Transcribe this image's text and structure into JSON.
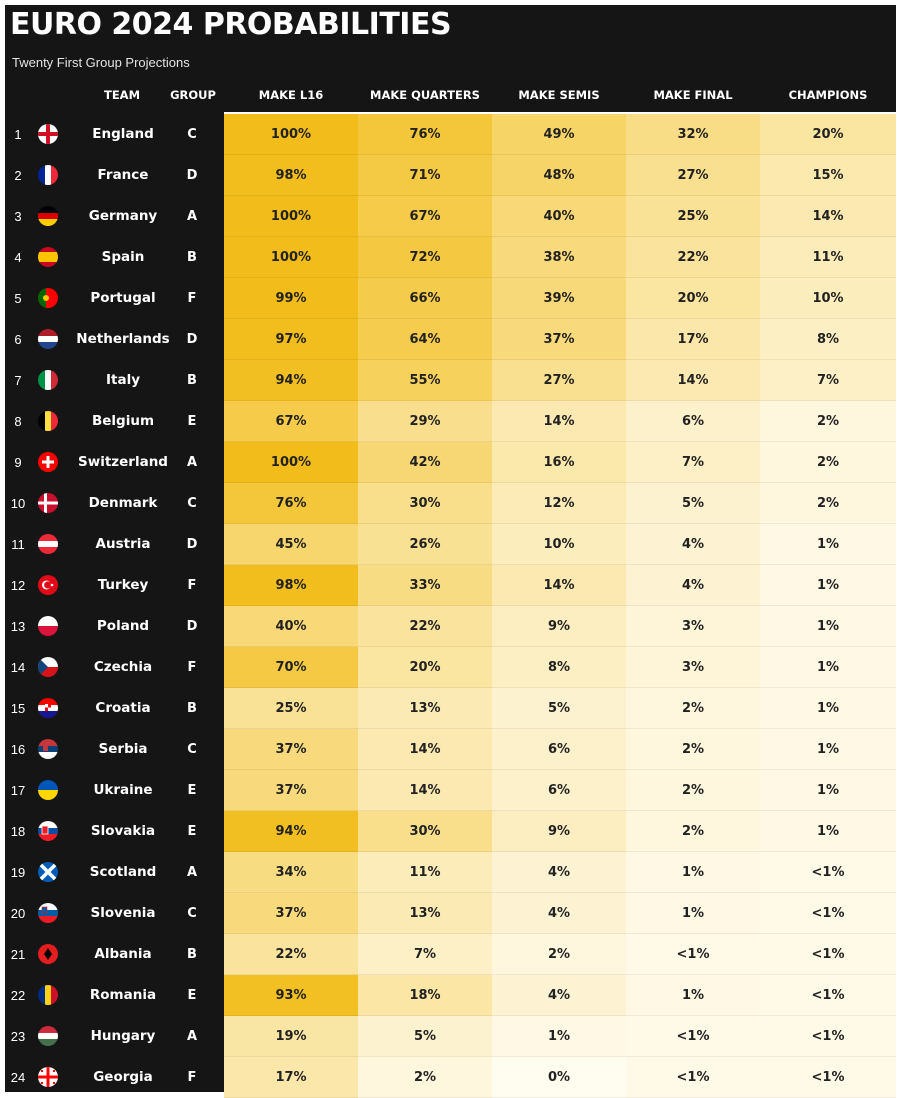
{
  "title": "EURO 2024 PROBABILITIES",
  "subtitle": "Twenty First Group Projections",
  "colors": {
    "header_bg": "#151515",
    "high": "#f2bd1a",
    "low": "#fffcf0",
    "text_dark": "#222222",
    "text_light": "#ffffff"
  },
  "headers": {
    "team": "TEAM",
    "group": "GROUP",
    "make_l16": "MAKE L16",
    "make_quarters": "MAKE QUARTERS",
    "make_semis": "MAKE SEMIS",
    "make_final": "MAKE FINAL",
    "champions": "CHAMPIONS"
  },
  "chart_data": {
    "type": "table",
    "title": "EURO 2024 PROBABILITIES",
    "subtitle": "Twenty First Group Projections",
    "columns": [
      "TEAM",
      "GROUP",
      "MAKE L16",
      "MAKE QUARTERS",
      "MAKE SEMIS",
      "MAKE FINAL",
      "CHAMPIONS"
    ],
    "rows": [
      {
        "rank": "1",
        "flag_icon": "england-flag-icon",
        "team": "England",
        "group": "C",
        "l16": "100%",
        "quarters": "76%",
        "semis": "49%",
        "final": "32%",
        "champions": "20%"
      },
      {
        "rank": "2",
        "flag_icon": "france-flag-icon",
        "team": "France",
        "group": "D",
        "l16": "98%",
        "quarters": "71%",
        "semis": "48%",
        "final": "27%",
        "champions": "15%"
      },
      {
        "rank": "3",
        "flag_icon": "germany-flag-icon",
        "team": "Germany",
        "group": "A",
        "l16": "100%",
        "quarters": "67%",
        "semis": "40%",
        "final": "25%",
        "champions": "14%"
      },
      {
        "rank": "4",
        "flag_icon": "spain-flag-icon",
        "team": "Spain",
        "group": "B",
        "l16": "100%",
        "quarters": "72%",
        "semis": "38%",
        "final": "22%",
        "champions": "11%"
      },
      {
        "rank": "5",
        "flag_icon": "portugal-flag-icon",
        "team": "Portugal",
        "group": "F",
        "l16": "99%",
        "quarters": "66%",
        "semis": "39%",
        "final": "20%",
        "champions": "10%"
      },
      {
        "rank": "6",
        "flag_icon": "netherlands-flag-icon",
        "team": "Netherlands",
        "group": "D",
        "l16": "97%",
        "quarters": "64%",
        "semis": "37%",
        "final": "17%",
        "champions": "8%"
      },
      {
        "rank": "7",
        "flag_icon": "italy-flag-icon",
        "team": "Italy",
        "group": "B",
        "l16": "94%",
        "quarters": "55%",
        "semis": "27%",
        "final": "14%",
        "champions": "7%"
      },
      {
        "rank": "8",
        "flag_icon": "belgium-flag-icon",
        "team": "Belgium",
        "group": "E",
        "l16": "67%",
        "quarters": "29%",
        "semis": "14%",
        "final": "6%",
        "champions": "2%"
      },
      {
        "rank": "9",
        "flag_icon": "switzerland-flag-icon",
        "team": "Switzerland",
        "group": "A",
        "l16": "100%",
        "quarters": "42%",
        "semis": "16%",
        "final": "7%",
        "champions": "2%"
      },
      {
        "rank": "10",
        "flag_icon": "denmark-flag-icon",
        "team": "Denmark",
        "group": "C",
        "l16": "76%",
        "quarters": "30%",
        "semis": "12%",
        "final": "5%",
        "champions": "2%"
      },
      {
        "rank": "11",
        "flag_icon": "austria-flag-icon",
        "team": "Austria",
        "group": "D",
        "l16": "45%",
        "quarters": "26%",
        "semis": "10%",
        "final": "4%",
        "champions": "1%"
      },
      {
        "rank": "12",
        "flag_icon": "turkey-flag-icon",
        "team": "Turkey",
        "group": "F",
        "l16": "98%",
        "quarters": "33%",
        "semis": "14%",
        "final": "4%",
        "champions": "1%"
      },
      {
        "rank": "13",
        "flag_icon": "poland-flag-icon",
        "team": "Poland",
        "group": "D",
        "l16": "40%",
        "quarters": "22%",
        "semis": "9%",
        "final": "3%",
        "champions": "1%"
      },
      {
        "rank": "14",
        "flag_icon": "czechia-flag-icon",
        "team": "Czechia",
        "group": "F",
        "l16": "70%",
        "quarters": "20%",
        "semis": "8%",
        "final": "3%",
        "champions": "1%"
      },
      {
        "rank": "15",
        "flag_icon": "croatia-flag-icon",
        "team": "Croatia",
        "group": "B",
        "l16": "25%",
        "quarters": "13%",
        "semis": "5%",
        "final": "2%",
        "champions": "1%"
      },
      {
        "rank": "16",
        "flag_icon": "serbia-flag-icon",
        "team": "Serbia",
        "group": "C",
        "l16": "37%",
        "quarters": "14%",
        "semis": "6%",
        "final": "2%",
        "champions": "1%"
      },
      {
        "rank": "17",
        "flag_icon": "ukraine-flag-icon",
        "team": "Ukraine",
        "group": "E",
        "l16": "37%",
        "quarters": "14%",
        "semis": "6%",
        "final": "2%",
        "champions": "1%"
      },
      {
        "rank": "18",
        "flag_icon": "slovakia-flag-icon",
        "team": "Slovakia",
        "group": "E",
        "l16": "94%",
        "quarters": "30%",
        "semis": "9%",
        "final": "2%",
        "champions": "1%"
      },
      {
        "rank": "19",
        "flag_icon": "scotland-flag-icon",
        "team": "Scotland",
        "group": "A",
        "l16": "34%",
        "quarters": "11%",
        "semis": "4%",
        "final": "1%",
        "champions": "<1%"
      },
      {
        "rank": "20",
        "flag_icon": "slovenia-flag-icon",
        "team": "Slovenia",
        "group": "C",
        "l16": "37%",
        "quarters": "13%",
        "semis": "4%",
        "final": "1%",
        "champions": "<1%"
      },
      {
        "rank": "21",
        "flag_icon": "albania-flag-icon",
        "team": "Albania",
        "group": "B",
        "l16": "22%",
        "quarters": "7%",
        "semis": "2%",
        "final": "<1%",
        "champions": "<1%"
      },
      {
        "rank": "22",
        "flag_icon": "romania-flag-icon",
        "team": "Romania",
        "group": "E",
        "l16": "93%",
        "quarters": "18%",
        "semis": "4%",
        "final": "1%",
        "champions": "<1%"
      },
      {
        "rank": "23",
        "flag_icon": "hungary-flag-icon",
        "team": "Hungary",
        "group": "A",
        "l16": "19%",
        "quarters": "5%",
        "semis": "1%",
        "final": "<1%",
        "champions": "<1%"
      },
      {
        "rank": "24",
        "flag_icon": "georgia-flag-icon",
        "team": "Georgia",
        "group": "F",
        "l16": "17%",
        "quarters": "2%",
        "semis": "0%",
        "final": "<1%",
        "champions": "<1%"
      }
    ]
  }
}
